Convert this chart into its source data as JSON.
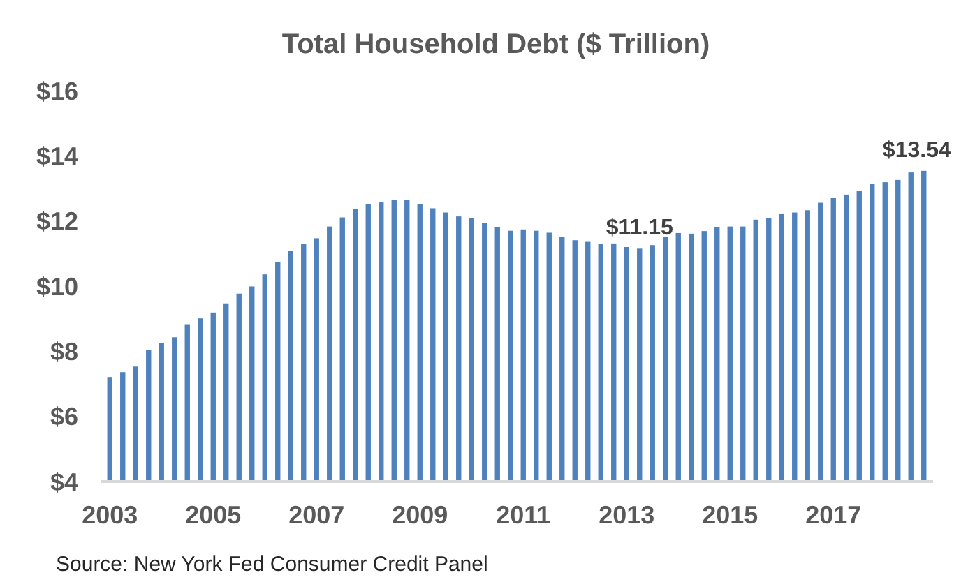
{
  "chart_data": {
    "type": "bar",
    "title": "Total Household Debt ($ Trillion)",
    "categories": [
      "2003",
      null,
      null,
      null,
      null,
      null,
      null,
      null,
      "2005",
      null,
      null,
      null,
      null,
      null,
      null,
      null,
      "2007",
      null,
      null,
      null,
      null,
      null,
      null,
      null,
      "2009",
      null,
      null,
      null,
      null,
      null,
      null,
      null,
      "2011",
      null,
      null,
      null,
      null,
      null,
      null,
      null,
      "2013",
      null,
      null,
      null,
      null,
      null,
      null,
      null,
      "2015",
      null,
      null,
      null,
      null,
      null,
      null,
      null,
      "2017",
      null,
      null,
      null,
      null,
      null,
      null,
      null
    ],
    "values": [
      7.21,
      7.36,
      7.53,
      8.04,
      8.26,
      8.43,
      8.81,
      9.01,
      9.19,
      9.47,
      9.77,
      9.99,
      10.36,
      10.73,
      11.09,
      11.29,
      11.47,
      11.83,
      12.11,
      12.36,
      12.51,
      12.57,
      12.64,
      12.64,
      12.51,
      12.39,
      12.26,
      12.14,
      12.1,
      11.93,
      11.81,
      11.7,
      11.74,
      11.7,
      11.64,
      11.51,
      11.41,
      11.36,
      11.29,
      11.31,
      11.2,
      11.15,
      11.26,
      11.5,
      11.63,
      11.61,
      11.69,
      11.8,
      11.83,
      11.83,
      12.04,
      12.1,
      12.23,
      12.26,
      12.33,
      12.56,
      12.7,
      12.81,
      12.93,
      13.13,
      13.19,
      13.26,
      13.49,
      13.54
    ],
    "value_labels": [
      null,
      null,
      null,
      null,
      null,
      null,
      null,
      null,
      null,
      null,
      null,
      null,
      null,
      null,
      null,
      null,
      null,
      null,
      null,
      null,
      null,
      null,
      null,
      null,
      null,
      null,
      null,
      null,
      null,
      null,
      null,
      null,
      null,
      null,
      null,
      null,
      null,
      null,
      null,
      null,
      null,
      "$11.15",
      null,
      null,
      null,
      null,
      null,
      null,
      null,
      null,
      null,
      null,
      null,
      null,
      null,
      null,
      null,
      null,
      null,
      null,
      null,
      null,
      null,
      "$13.54"
    ],
    "color": "#4f81bd",
    "ylim": [
      4,
      16
    ],
    "yticks": [
      {
        "value": 4,
        "label": "$4"
      },
      {
        "value": 6,
        "label": "$6"
      },
      {
        "value": 8,
        "label": "$8"
      },
      {
        "value": 10,
        "label": "$10"
      },
      {
        "value": 12,
        "label": "$12"
      },
      {
        "value": 14,
        "label": "$14"
      },
      {
        "value": 16,
        "label": "$16"
      }
    ],
    "grid": false,
    "annotations": [
      "Source: New York Fed Consumer Credit Panel"
    ]
  }
}
